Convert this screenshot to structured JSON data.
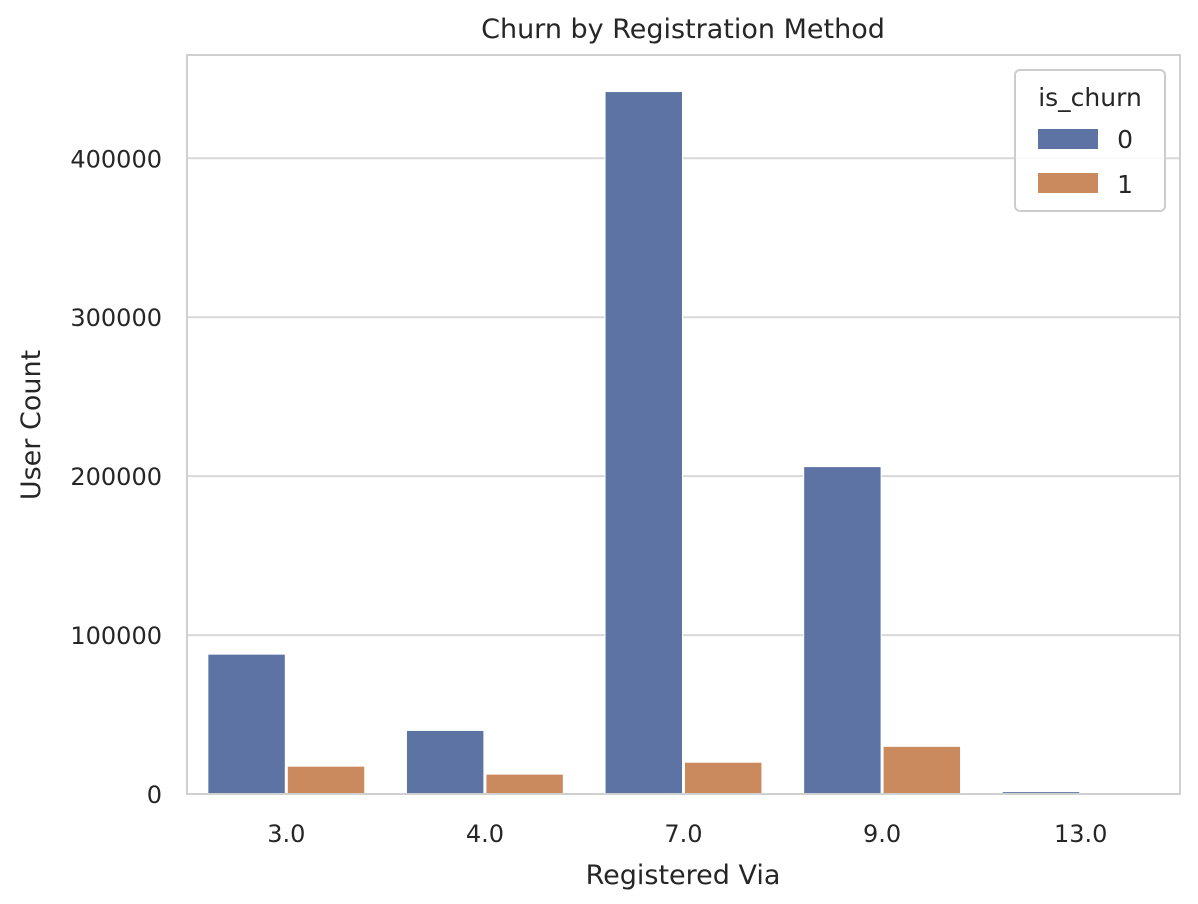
{
  "chart_data": {
    "type": "bar",
    "title": "Churn by Registration Method",
    "xlabel": "Registered Via",
    "ylabel": "User Count",
    "categories": [
      "3.0",
      "4.0",
      "7.0",
      "9.0",
      "13.0"
    ],
    "series": [
      {
        "name": "0",
        "color": "#5c73a4",
        "values": [
          88000,
          40000,
          442000,
          206000,
          1500
        ]
      },
      {
        "name": "1",
        "color": "#cb8a5e",
        "values": [
          17500,
          12500,
          20000,
          30000,
          500
        ]
      }
    ],
    "yticks": [
      0,
      100000,
      200000,
      300000,
      400000
    ],
    "ytick_labels": [
      "0",
      "100000",
      "200000",
      "300000",
      "400000"
    ],
    "ylim": [
      0,
      465000
    ],
    "grid": true,
    "legend": {
      "title": "is_churn",
      "position": "top-right"
    }
  }
}
